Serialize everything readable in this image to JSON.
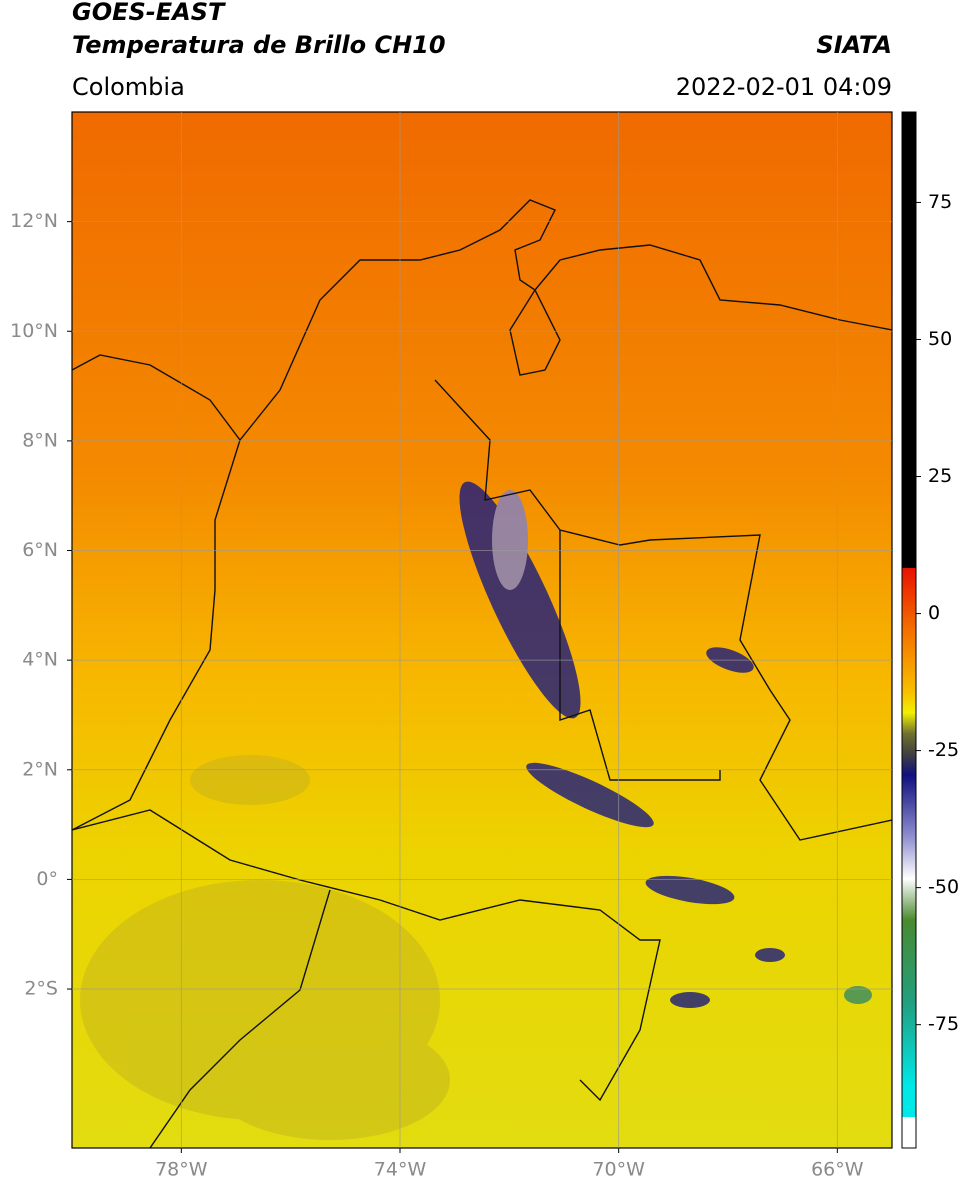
{
  "header": {
    "title_line1": "GOES-EAST",
    "title_line2": "Temperatura de Brillo CH10",
    "region": "Colombia",
    "source": "SIATA",
    "datetime": "2022-02-01 04:09"
  },
  "map": {
    "lonlim": [
      -80,
      -65
    ],
    "latlim": [
      -4.9,
      14
    ],
    "lonticks": [
      {
        "value": -78,
        "label": "78°W"
      },
      {
        "value": -74,
        "label": "74°W"
      },
      {
        "value": -70,
        "label": "70°W"
      },
      {
        "value": -66,
        "label": "66°W"
      }
    ],
    "latticks": [
      {
        "value": 12,
        "label": "12°N"
      },
      {
        "value": 10,
        "label": "10°N"
      },
      {
        "value": 8,
        "label": "8°N"
      },
      {
        "value": 6,
        "label": "6°N"
      },
      {
        "value": 4,
        "label": "4°N"
      },
      {
        "value": 2,
        "label": "2°N"
      },
      {
        "value": 0,
        "label": "0°"
      },
      {
        "value": -2,
        "label": "2°S"
      }
    ]
  },
  "colorbar": {
    "lim": [
      -97.5,
      91.5
    ],
    "ticks": [
      75,
      50,
      25,
      0,
      -25,
      -50,
      -75
    ]
  }
}
